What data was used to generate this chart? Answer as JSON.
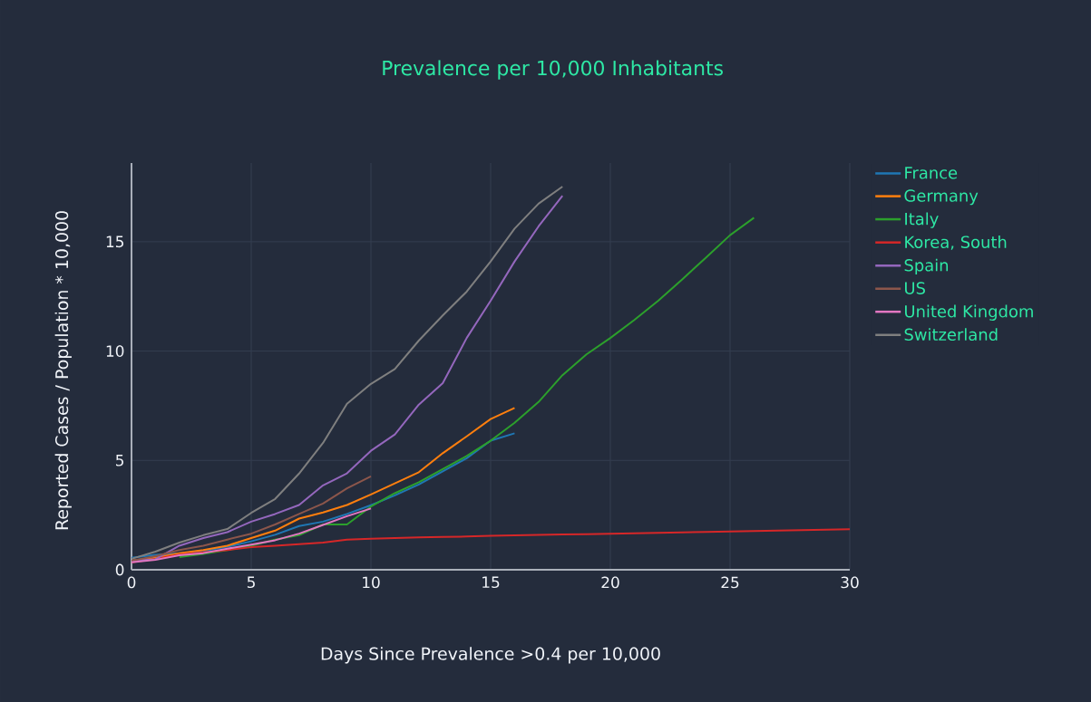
{
  "chart_data": {
    "type": "line",
    "title": "Prevalence per 10,000 Inhabitants",
    "xlabel": "Days Since Prevalence >0.4 per 10,000",
    "ylabel": "Reported Cases / Population * 10,000",
    "xlim": [
      0,
      30
    ],
    "ylim": [
      0,
      18.6
    ],
    "xticks": [
      0,
      5,
      10,
      15,
      20,
      25,
      30
    ],
    "yticks": [
      0,
      5,
      10,
      15
    ],
    "grid": true,
    "legend": "top right",
    "series": [
      {
        "name": "France",
        "color": "#1f77b4",
        "x": [
          0,
          1,
          2,
          3,
          4,
          5,
          6,
          7,
          8,
          9,
          10,
          11,
          12,
          13,
          14,
          15,
          16
        ],
        "values": [
          0.55,
          0.68,
          0.75,
          0.85,
          1.05,
          1.3,
          1.6,
          2.0,
          2.2,
          2.55,
          2.95,
          3.4,
          3.9,
          4.5,
          5.1,
          5.9,
          6.24
        ]
      },
      {
        "name": "Germany",
        "color": "#ff7f0e",
        "x": [
          0,
          1,
          2,
          3,
          4,
          5,
          6,
          7,
          8,
          9,
          10,
          11,
          12,
          13,
          14,
          15,
          16
        ],
        "values": [
          0.41,
          0.55,
          0.76,
          0.9,
          1.1,
          1.45,
          1.79,
          2.34,
          2.62,
          2.96,
          3.44,
          3.95,
          4.46,
          5.33,
          6.1,
          6.89,
          7.4
        ]
      },
      {
        "name": "Italy",
        "color": "#2ca02c",
        "x": [
          2,
          3,
          4,
          5,
          6,
          7,
          8,
          9,
          10,
          11,
          12,
          13,
          14,
          15,
          16,
          17,
          18,
          19,
          20,
          21,
          22,
          23,
          24,
          25,
          26
        ],
        "values": [
          0.58,
          0.72,
          0.9,
          1.1,
          1.38,
          1.58,
          2.07,
          2.07,
          2.89,
          3.5,
          4.0,
          4.6,
          5.2,
          5.9,
          6.72,
          7.67,
          8.9,
          9.85,
          10.6,
          11.42,
          12.3,
          13.28,
          14.28,
          15.3,
          16.1
        ]
      },
      {
        "name": "Korea, South",
        "color": "#d62728",
        "x": [
          0,
          1,
          2,
          3,
          4,
          5,
          6,
          7,
          8,
          9,
          10,
          11,
          12,
          13,
          14,
          15,
          16,
          17,
          18,
          19,
          20,
          21,
          22,
          23,
          24,
          25,
          26,
          27,
          28,
          29,
          30
        ],
        "values": [
          0.34,
          0.5,
          0.69,
          0.8,
          0.9,
          1.03,
          1.1,
          1.17,
          1.24,
          1.38,
          1.42,
          1.45,
          1.48,
          1.5,
          1.52,
          1.55,
          1.57,
          1.59,
          1.61,
          1.63,
          1.65,
          1.67,
          1.69,
          1.71,
          1.73,
          1.75,
          1.77,
          1.79,
          1.81,
          1.83,
          1.85
        ]
      },
      {
        "name": "Spain",
        "color": "#9467bd",
        "x": [
          0,
          1,
          2,
          3,
          4,
          5,
          6,
          7,
          8,
          9,
          10,
          11,
          12,
          13,
          14,
          15,
          16,
          17,
          18
        ],
        "values": [
          0.41,
          0.48,
          1.1,
          1.45,
          1.72,
          2.2,
          2.55,
          2.96,
          3.86,
          4.41,
          5.44,
          6.19,
          7.55,
          8.53,
          10.6,
          12.3,
          14.1,
          15.7,
          17.1
        ]
      },
      {
        "name": "US",
        "color": "#8c564b",
        "x": [
          0,
          1,
          2,
          3,
          4,
          5,
          6,
          7,
          8,
          9,
          10
        ],
        "values": [
          0.41,
          0.62,
          0.9,
          1.1,
          1.38,
          1.65,
          2.07,
          2.55,
          3.03,
          3.72,
          4.27
        ]
      },
      {
        "name": "United Kingdom",
        "color": "#e377c2",
        "x": [
          0,
          1,
          2,
          3,
          4,
          5,
          6,
          7,
          8,
          9,
          10
        ],
        "values": [
          0.34,
          0.45,
          0.66,
          0.76,
          0.96,
          1.15,
          1.35,
          1.65,
          2.05,
          2.45,
          2.8
        ]
      },
      {
        "name": "Switzerland",
        "color": "#7f7f7f",
        "x": [
          0,
          1,
          2,
          3,
          4,
          5,
          6,
          7,
          8,
          9,
          10,
          11,
          12,
          13,
          14,
          15,
          16,
          17,
          18
        ],
        "values": [
          0.5,
          0.83,
          1.24,
          1.58,
          1.86,
          2.6,
          3.24,
          4.4,
          5.8,
          7.59,
          8.5,
          9.18,
          10.48,
          11.63,
          12.72,
          14.1,
          15.6,
          16.74,
          17.52
        ]
      }
    ]
  }
}
